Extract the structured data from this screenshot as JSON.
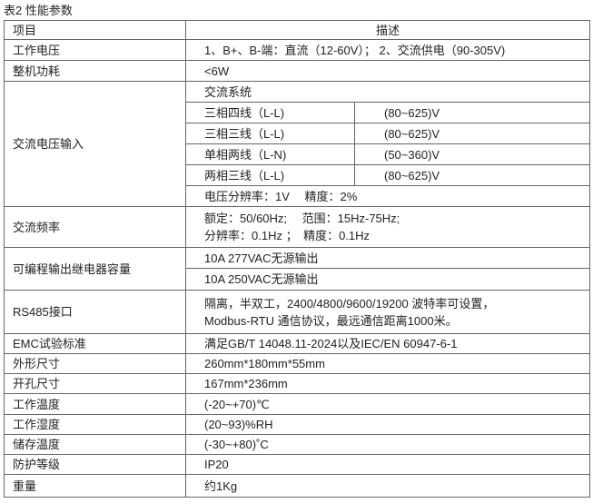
{
  "caption": "表2 性能参数",
  "header": {
    "item": "项目",
    "desc": "描述"
  },
  "rows": {
    "voltage": {
      "label": "工作电压",
      "value": "1、B+、B-端：直流（12-60V）； 2、交流供电（90-305V)"
    },
    "power": {
      "label": "整机功耗",
      "value": "<6W"
    },
    "ac_input": {
      "label": "交流电压输入",
      "system": "交流系统",
      "items": [
        {
          "name": "三相四线（L-L)",
          "range": "(80~625)V"
        },
        {
          "name": "三相三线（L-L)",
          "range": "(80~625)V"
        },
        {
          "name": "单相两线（L-N)",
          "range": "(50~360)V"
        },
        {
          "name": "两相三线（L-L)",
          "range": "(80~625)V"
        }
      ],
      "resolution": "电压分辨率：1V　 精度：2%"
    },
    "frequency": {
      "label": "交流频率",
      "line1": "额定：50/60Hz;　 范围：15Hz-75Hz;",
      "line2": "分辨率：0.1Hz ；　精度：0.1Hz"
    },
    "relay": {
      "label": "可编程输出继电器容量",
      "line1": "10A 277VAC无源输出",
      "line2": "10A 250VAC无源输出"
    },
    "rs485": {
      "label": "RS485接口",
      "line1": "隔离，半双工，2400/4800/9600/19200 波特率可设置，",
      "line2": "Modbus-RTU 通信协议，最远通信距离1000米。"
    },
    "emc": {
      "label": "EMC试验标准",
      "value": "满足GB/T 14048.11-2024以及IEC/EN 60947-6-1"
    },
    "dims": {
      "label": "外形尺寸",
      "value": "260mm*180mm*55mm"
    },
    "cutout": {
      "label": "开孔尺寸",
      "value": "167mm*236mm"
    },
    "op_temp": {
      "label": "工作温度",
      "value": "(-20~+70)℃"
    },
    "humidity": {
      "label": "工作湿度",
      "value": "(20~93)%RH"
    },
    "storage": {
      "label": "储存温度",
      "value": "(-30~+80)˚C"
    },
    "ip": {
      "label": "防护等级",
      "value": "IP20"
    },
    "weight": {
      "label": "重量",
      "value": "约1Kg"
    }
  }
}
